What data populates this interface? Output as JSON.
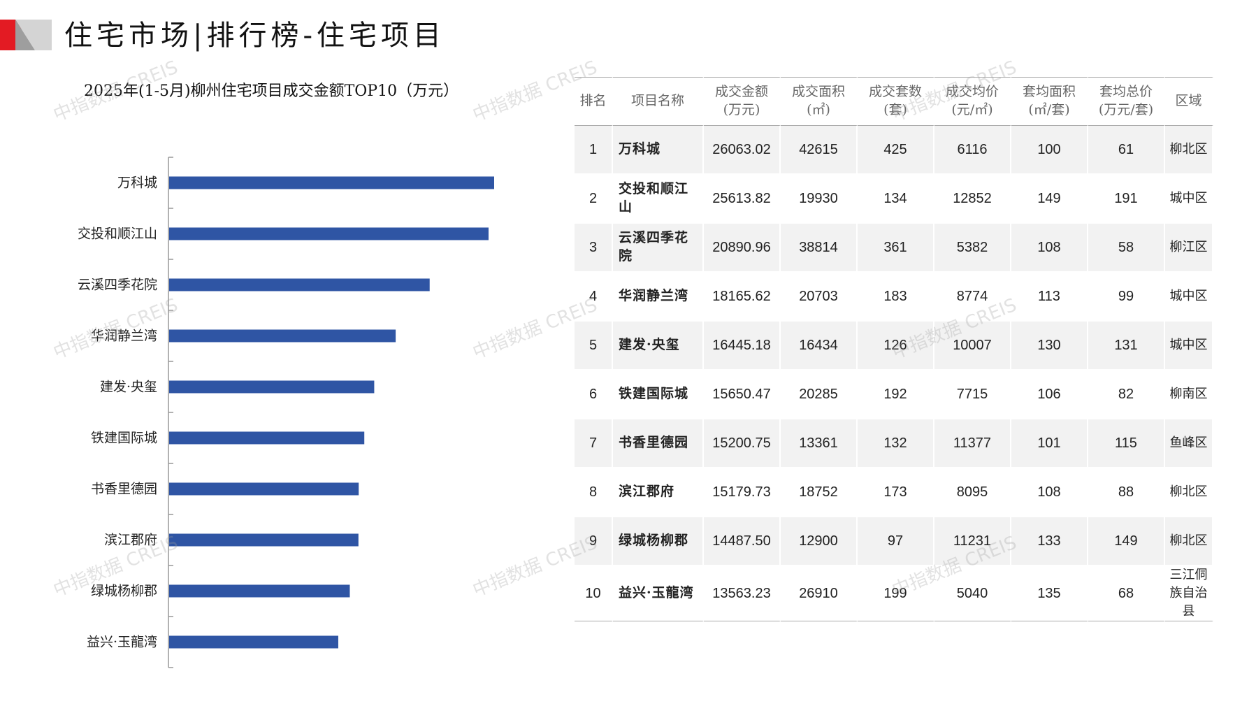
{
  "header": {
    "title": "住宅市场|排行榜-住宅项目",
    "brand_colors": {
      "red": "#e31b23",
      "gray": "#c8c8c8"
    }
  },
  "chart_data": {
    "type": "bar",
    "orientation": "horizontal",
    "title": "2025年(1-5月)柳州住宅项目成交金额TOP10（万元）",
    "categories": [
      "万科城",
      "交投和顺江山",
      "云溪四季花院",
      "华润静兰湾",
      "建发·央玺",
      "铁建国际城",
      "书香里德园",
      "滨江郡府",
      "绿城杨柳郡",
      "益兴·玉龍湾"
    ],
    "values": [
      26063.02,
      25613.82,
      20890.96,
      18165.62,
      16445.18,
      15650.47,
      15200.75,
      15179.73,
      14487.5,
      13563.23
    ],
    "bar_color": "#2f55a4",
    "xlim": [
      0,
      26063.02
    ],
    "grid": false,
    "legend": "none"
  },
  "table": {
    "headers": [
      [
        "排名"
      ],
      [
        "项目名称"
      ],
      [
        "成交金额",
        "(万元)"
      ],
      [
        "成交面积",
        "(㎡)"
      ],
      [
        "成交套数",
        "(套)"
      ],
      [
        "成交均价",
        "(元/㎡)"
      ],
      [
        "套均面积",
        "(㎡/套)"
      ],
      [
        "套均总价",
        "(万元/套)"
      ],
      [
        "区域"
      ]
    ],
    "rows": [
      [
        "1",
        "万科城",
        "26063.02",
        "42615",
        "425",
        "6116",
        "100",
        "61",
        "柳北区"
      ],
      [
        "2",
        "交投和顺江山",
        "25613.82",
        "19930",
        "134",
        "12852",
        "149",
        "191",
        "城中区"
      ],
      [
        "3",
        "云溪四季花院",
        "20890.96",
        "38814",
        "361",
        "5382",
        "108",
        "58",
        "柳江区"
      ],
      [
        "4",
        "华润静兰湾",
        "18165.62",
        "20703",
        "183",
        "8774",
        "113",
        "99",
        "城中区"
      ],
      [
        "5",
        "建发·央玺",
        "16445.18",
        "16434",
        "126",
        "10007",
        "130",
        "131",
        "城中区"
      ],
      [
        "6",
        "铁建国际城",
        "15650.47",
        "20285",
        "192",
        "7715",
        "106",
        "82",
        "柳南区"
      ],
      [
        "7",
        "书香里德园",
        "15200.75",
        "13361",
        "132",
        "11377",
        "101",
        "115",
        "鱼峰区"
      ],
      [
        "8",
        "滨江郡府",
        "15179.73",
        "18752",
        "173",
        "8095",
        "108",
        "88",
        "柳北区"
      ],
      [
        "9",
        "绿城杨柳郡",
        "14487.50",
        "12900",
        "97",
        "11231",
        "133",
        "149",
        "柳北区"
      ],
      [
        "10",
        "益兴·玉龍湾",
        "13563.23",
        "26910",
        "199",
        "5040",
        "135",
        "68",
        "三江侗族自治县"
      ]
    ]
  },
  "watermark": {
    "text": "中指数据 CREIS"
  }
}
